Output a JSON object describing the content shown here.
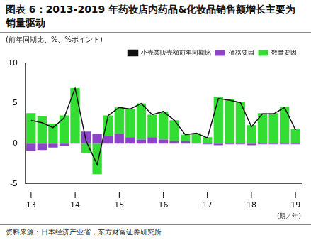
{
  "chart_data": {
    "type": "bar",
    "title": "图表 6：2013-2019 年药妆店内药品&化妆品销售额增长主要为销量驱动",
    "y_label": "(前年同期比、%、%ポイント)",
    "x_label": "(期／年)",
    "source": "资料来源：日本经济产业省，东方财富证券研究所",
    "categories": [
      [
        "I",
        "13"
      ],
      null,
      null,
      null,
      [
        "I",
        "14"
      ],
      null,
      null,
      null,
      [
        "I",
        "15"
      ],
      null,
      null,
      null,
      [
        "I",
        "16"
      ],
      null,
      null,
      null,
      [
        "I",
        "17"
      ],
      null,
      null,
      null,
      [
        "I",
        "18"
      ],
      null,
      null,
      null,
      [
        "I",
        "19"
      ]
    ],
    "series": [
      {
        "name": "価格要因",
        "type": "bar",
        "color": "#8e44c9",
        "values": [
          -0.9,
          -0.8,
          -0.5,
          -0.3,
          0.1,
          1.5,
          1.2,
          1.0,
          1.2,
          0.8,
          0.5,
          0.8,
          0.5,
          0.3,
          0.3,
          0.1,
          -0.1,
          -0.2,
          -0.1,
          -0.1,
          -0.2,
          -0.1,
          -0.1,
          -0.1,
          -0.1
        ]
      },
      {
        "name": "数量要因",
        "type": "bar",
        "color": "#33dd33",
        "values": [
          3.8,
          3.4,
          2.5,
          3.5,
          6.8,
          -1.2,
          -3.8,
          2.5,
          3.3,
          3.5,
          4.5,
          2.8,
          3.5,
          2.6,
          0.8,
          1.2,
          0.8,
          5.8,
          5.5,
          5.2,
          2.3,
          3.8,
          3.8,
          4.6,
          1.8
        ]
      },
      {
        "name": "小売業販売額前年同期比",
        "type": "line",
        "color": "#111111",
        "values": [
          2.9,
          2.6,
          2.0,
          3.2,
          6.9,
          0.3,
          -2.6,
          3.5,
          4.5,
          4.3,
          5.0,
          3.6,
          4.0,
          2.9,
          1.1,
          1.3,
          0.7,
          5.6,
          5.4,
          5.1,
          2.1,
          3.7,
          3.7,
          4.5,
          1.7
        ]
      }
    ],
    "ylim": [
      -5,
      10
    ],
    "yticks": [
      -5,
      0,
      5,
      10
    ],
    "stacked": true,
    "grid": false,
    "legend": "top"
  }
}
